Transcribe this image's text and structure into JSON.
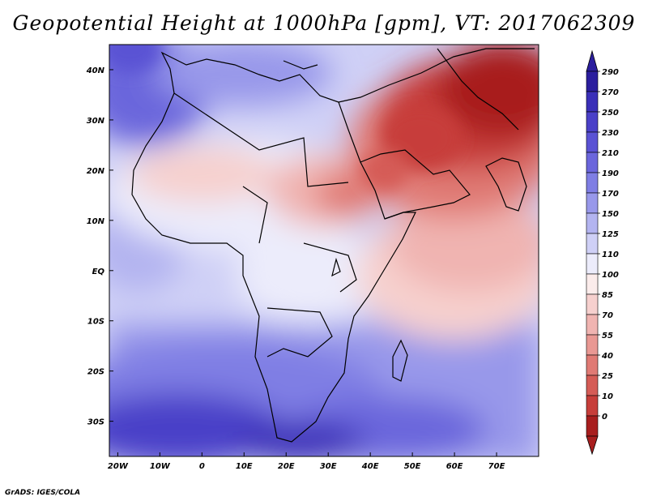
{
  "title": "Geopotential Height at 1000hPa [gpm], VT: 2017062309",
  "footer": "GrADS: IGES/COLA",
  "axes": {
    "lat_labels": [
      "40N",
      "30N",
      "20N",
      "10N",
      "EQ",
      "10S",
      "20S",
      "30S"
    ],
    "lat_values": [
      40,
      30,
      20,
      10,
      0,
      -10,
      -20,
      -30
    ],
    "lon_labels": [
      "20W",
      "10W",
      "0",
      "10E",
      "20E",
      "30E",
      "40E",
      "50E",
      "60E",
      "70E"
    ],
    "lon_values": [
      -20,
      -10,
      0,
      10,
      20,
      30,
      40,
      50,
      60,
      70
    ],
    "lat_range": [
      -37,
      45
    ],
    "lon_range": [
      -22,
      80
    ]
  },
  "colorbar": {
    "labels": [
      "290",
      "270",
      "250",
      "230",
      "210",
      "190",
      "170",
      "150",
      "125",
      "110",
      "100",
      "85",
      "70",
      "55",
      "40",
      "25",
      "10",
      "0"
    ],
    "colors": [
      "#2b1e9e",
      "#3a2fb8",
      "#4a40c8",
      "#5a52d4",
      "#6b66dc",
      "#7f7ee4",
      "#9898ea",
      "#b3b4f0",
      "#cfd0f6",
      "#ececfb",
      "#fbeceb",
      "#f6d0ce",
      "#f0b4b1",
      "#e99893",
      "#e07a74",
      "#d55c56",
      "#c73e3a",
      "#a81e1e"
    ]
  },
  "legend": {
    "units": "gpm"
  }
}
